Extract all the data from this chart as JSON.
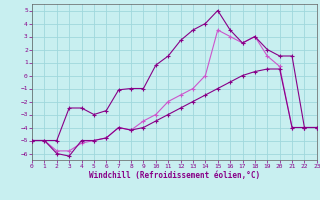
{
  "xlabel": "Windchill (Refroidissement éolien,°C)",
  "bg_color": "#c8eff0",
  "grid_color": "#a0d8dc",
  "xlim": [
    0,
    23
  ],
  "ylim": [
    -6.5,
    5.5
  ],
  "xticks": [
    0,
    1,
    2,
    3,
    4,
    5,
    6,
    7,
    8,
    9,
    10,
    11,
    12,
    13,
    14,
    15,
    16,
    17,
    18,
    19,
    20,
    21,
    22,
    23
  ],
  "yticks": [
    -6,
    -5,
    -4,
    -3,
    -2,
    -1,
    0,
    1,
    2,
    3,
    4,
    5
  ],
  "line_dark": "#880088",
  "line_light": "#cc55cc",
  "line1_x": [
    0,
    1,
    2,
    3,
    4,
    5,
    6,
    7,
    8,
    9,
    10,
    11,
    12,
    13,
    14,
    15,
    16,
    17,
    18,
    19,
    20,
    21,
    22,
    23
  ],
  "line1_y": [
    -5.0,
    -5.0,
    -6.0,
    -6.2,
    -5.0,
    -5.0,
    -4.8,
    -4.0,
    -4.2,
    -4.0,
    -3.5,
    -3.0,
    -2.5,
    -2.0,
    -1.5,
    -1.0,
    -0.5,
    0.0,
    0.3,
    0.5,
    0.5,
    -4.0,
    -4.0,
    -4.0
  ],
  "line2_x": [
    0,
    2,
    3,
    4,
    5,
    6,
    7,
    8,
    9,
    10,
    11,
    12,
    13,
    14,
    15,
    16,
    17,
    18,
    19,
    20,
    21,
    22,
    23
  ],
  "line2_y": [
    -5.0,
    -5.0,
    -2.5,
    -2.5,
    -3.0,
    -2.7,
    -1.1,
    -1.0,
    -1.0,
    0.8,
    1.5,
    2.7,
    3.5,
    4.0,
    5.0,
    3.5,
    2.5,
    3.0,
    2.0,
    1.5,
    1.5,
    -4.0,
    -4.0
  ],
  "line3_x": [
    0,
    1,
    2,
    3,
    4,
    5,
    6,
    7,
    8,
    9,
    10,
    11,
    12,
    13,
    14,
    15,
    16,
    17,
    18,
    19,
    20,
    21,
    22,
    23
  ],
  "line3_y": [
    -5.0,
    -5.0,
    -5.8,
    -5.8,
    -5.2,
    -5.0,
    -4.8,
    -4.0,
    -4.2,
    -3.5,
    -3.0,
    -2.0,
    -1.5,
    -1.0,
    0.0,
    3.5,
    3.0,
    2.5,
    3.0,
    1.5,
    0.7,
    -4.0,
    -4.0,
    -4.0
  ]
}
